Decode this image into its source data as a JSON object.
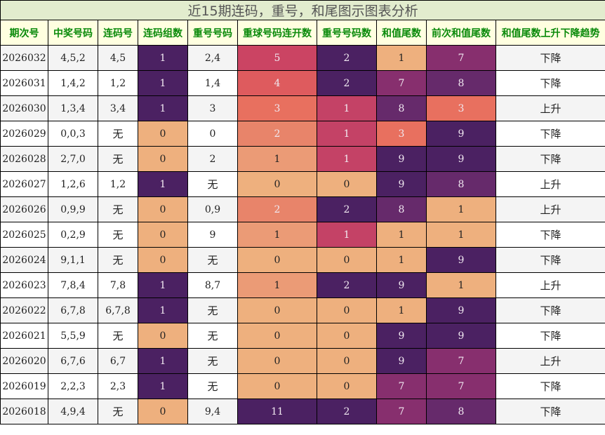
{
  "title": "近15期连码，重号，和尾图示图表分析",
  "headers": [
    "期次号",
    "中奖号码",
    "连码号",
    "连码组数",
    "重号号码",
    "重球号码连开数",
    "重号号码数",
    "和值尾数",
    "前次和值尾数",
    "和值尾数上升下降趋势"
  ],
  "rows": [
    [
      "2026032",
      "4,5,2",
      "4,5",
      "1",
      "2,4",
      "5",
      "2",
      "1",
      "7",
      "下降"
    ],
    [
      "2026031",
      "1,4,2",
      "1,2",
      "1",
      "1,4",
      "4",
      "2",
      "7",
      "8",
      "下降"
    ],
    [
      "2026030",
      "1,3,4",
      "3,4",
      "1",
      "3",
      "3",
      "1",
      "8",
      "3",
      "上升"
    ],
    [
      "2026029",
      "0,0,3",
      "无",
      "0",
      "0",
      "2",
      "1",
      "3",
      "9",
      "下降"
    ],
    [
      "2026028",
      "2,7,0",
      "无",
      "0",
      "2",
      "1",
      "1",
      "9",
      "9",
      "下降"
    ],
    [
      "2026027",
      "1,2,6",
      "1,2",
      "1",
      "无",
      "0",
      "0",
      "9",
      "8",
      "上升"
    ],
    [
      "2026026",
      "0,9,9",
      "无",
      "0",
      "0,9",
      "2",
      "2",
      "8",
      "1",
      "上升"
    ],
    [
      "2026025",
      "0,2,9",
      "无",
      "0",
      "9",
      "1",
      "1",
      "1",
      "1",
      "下降"
    ],
    [
      "2026024",
      "9,1,1",
      "无",
      "0",
      "无",
      "0",
      "0",
      "1",
      "9",
      "下降"
    ],
    [
      "2026023",
      "7,8,4",
      "7,8",
      "1",
      "8,7",
      "1",
      "2",
      "9",
      "1",
      "上升"
    ],
    [
      "2026022",
      "6,7,8",
      "6,7,8",
      "1",
      "无",
      "0",
      "0",
      "1",
      "9",
      "下降"
    ],
    [
      "2026021",
      "5,5,9",
      "无",
      "0",
      "无",
      "0",
      "0",
      "9",
      "9",
      "下降"
    ],
    [
      "2026020",
      "6,7,6",
      "6,7",
      "1",
      "无",
      "0",
      "0",
      "9",
      "7",
      "上升"
    ],
    [
      "2026019",
      "2,2,3",
      "2,3",
      "1",
      "无",
      "0",
      "0",
      "7",
      "7",
      "下降"
    ],
    [
      "2026018",
      "4,9,4",
      "无",
      "0",
      "9,4",
      "11",
      "2",
      "7",
      "8",
      "下降"
    ]
  ],
  "color_scales": {
    "3": {
      "0": "#eeb07e",
      "1": "#4b2162"
    },
    "5": {
      "0": "#eeb07e",
      "1": "#eb9b76",
      "2": "#e8846a",
      "3": "#e8705f",
      "4": "#de5b5e",
      "5": "#cb4463",
      "11": "#4b2162"
    },
    "6": {
      "0": "#eeb07e",
      "1": "#c44266",
      "2": "#4b2162"
    },
    "7": {
      "1": "#eeb07e",
      "3": "#e8705f",
      "7": "#872f6e",
      "8": "#662a6b",
      "9": "#4b2162"
    },
    "8": {
      "1": "#eeb07e",
      "3": "#e8705f",
      "7": "#872f6e",
      "8": "#662a6b",
      "9": "#4b2162"
    }
  },
  "light_colors": [
    "#eeb07e",
    "#eb9b76"
  ]
}
